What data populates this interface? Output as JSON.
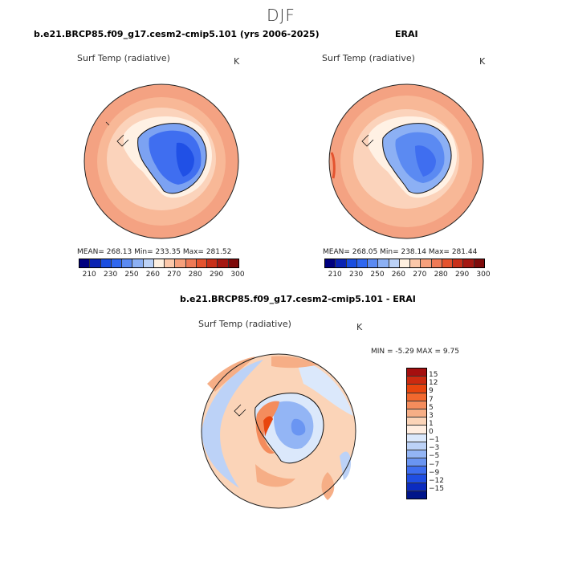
{
  "season": "DJF",
  "panels": {
    "model": {
      "title": "b.e21.BRCP85.f09_g17.cesm2-cmip5.101 (yrs 2006-2025)",
      "variable": "Surf Temp (radiative)",
      "units": "K",
      "stats": "MEAN= 268.13   Min= 233.35   Max= 281.52"
    },
    "obs": {
      "title": "ERAI",
      "variable": "Surf Temp (radiative)",
      "units": "K",
      "stats": "MEAN= 268.05   Min= 238.14   Max= 281.44"
    },
    "diff": {
      "title": "b.e21.BRCP85.f09_g17.cesm2-cmip5.101 - ERAI",
      "variable": "Surf Temp (radiative)",
      "units": "K",
      "stats": "MIN =   -5.29  MAX =    9.75"
    }
  },
  "abs_colorbar": {
    "colors": [
      "#00007f",
      "#0a23b3",
      "#1a4ee0",
      "#2f67f0",
      "#5b8af2",
      "#8cb0f4",
      "#bcd2f7",
      "#fff0e0",
      "#fcc8aa",
      "#f6a07c",
      "#ee7a57",
      "#e4532f",
      "#c8301a",
      "#a51812",
      "#7e0b0b"
    ],
    "labels": [
      "210",
      "230",
      "250",
      "260",
      "270",
      "280",
      "290",
      "300"
    ]
  },
  "diff_colorbar": {
    "colors_top_to_bottom": [
      "#a50f0f",
      "#cc2a10",
      "#e8450e",
      "#f2682e",
      "#f48c5c",
      "#f6ae86",
      "#fbd4b8",
      "#ffede0",
      "#dbe8fb",
      "#bcd2f7",
      "#93b5f5",
      "#6a95f2",
      "#3e6ef0",
      "#1f4ee3",
      "#0b2cc0",
      "#00158a"
    ],
    "labels_top_to_bottom": [
      "15",
      "12",
      "9",
      "7",
      "5",
      "3",
      "1",
      "0",
      "−1",
      "−3",
      "−5",
      "−7",
      "−9",
      "−12",
      "−15"
    ]
  }
}
